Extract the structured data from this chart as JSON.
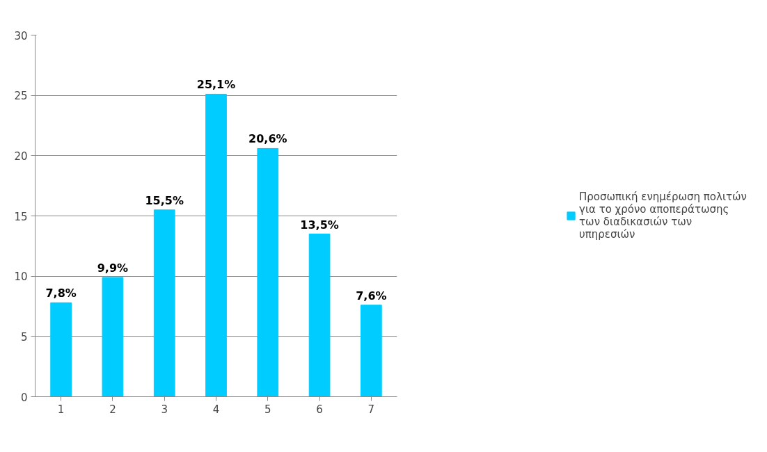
{
  "chart_data": {
    "type": "bar",
    "categories": [
      "1",
      "2",
      "3",
      "4",
      "5",
      "6",
      "7"
    ],
    "series": [
      {
        "name": "Προσωπική ενημέρωση πολιτών για το χρόνο αποπεράτωσης των διαδικασιών των υπηρεσιών",
        "color": "#00ccff",
        "values": [
          7.8,
          9.9,
          15.5,
          25.1,
          20.6,
          13.5,
          7.6
        ],
        "value_labels": [
          "7,8%",
          "9,9%",
          "15,5%",
          "25,1%",
          "20,6%",
          "13,5%",
          "7,6%"
        ]
      }
    ],
    "ylim": [
      0,
      30
    ],
    "yticks": [
      0,
      5,
      10,
      15,
      20,
      25,
      30
    ],
    "grid": "y",
    "legend": "right"
  }
}
